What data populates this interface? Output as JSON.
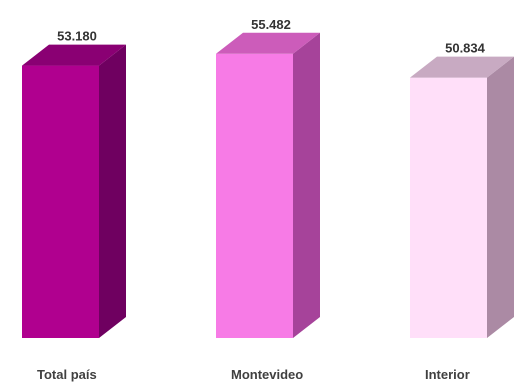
{
  "chart_data": {
    "type": "bar",
    "categories": [
      "Total país",
      "Montevideo",
      "Interior"
    ],
    "values": [
      53180,
      55482,
      50834
    ],
    "value_labels": [
      "53.180",
      "55.482",
      "50.834"
    ],
    "ylim": [
      0,
      57000
    ],
    "grid": false,
    "colors": {
      "bars_front": [
        "#b0008f",
        "#f77be6",
        "#ffdff9"
      ],
      "bars_side": [
        "#6f0060",
        "#a6439a",
        "#ab8aa4"
      ],
      "bars_top": [
        "#8a0073",
        "#cc5cba",
        "#c8aac2"
      ]
    }
  }
}
